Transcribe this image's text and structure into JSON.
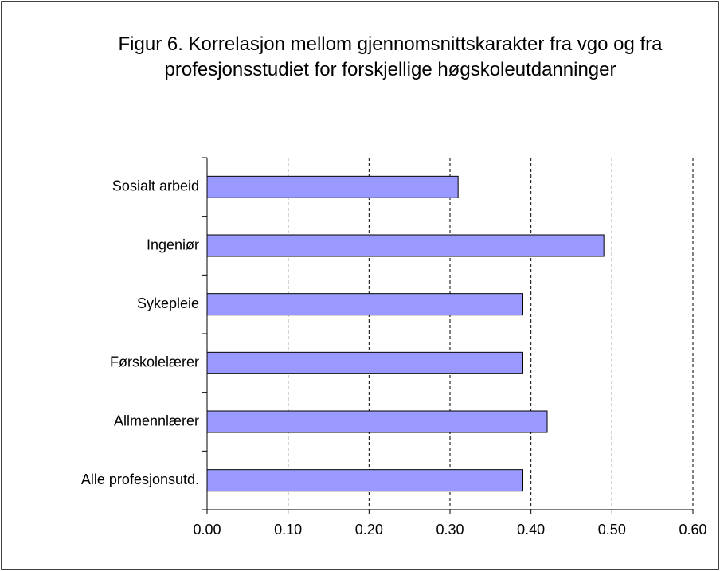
{
  "chart_data": {
    "type": "bar",
    "orientation": "horizontal",
    "title": "Figur 6. Korrelasjon mellom gjennomsnittskarakter fra vgo og fra profesjonsstudiet for forskjellige høgskoleutdanninger",
    "categories": [
      "Sosialt arbeid",
      "Ingeniør",
      "Sykepleie",
      "Førskolelærer",
      "Allmennlærer",
      "Alle profesjonsutd."
    ],
    "values": [
      0.31,
      0.49,
      0.39,
      0.39,
      0.42,
      0.39
    ],
    "color": "#9999ff",
    "xlim": [
      0,
      0.6
    ],
    "xticks": [
      {
        "value": 0,
        "label": "0.00"
      },
      {
        "value": 0.1,
        "label": "0.10"
      },
      {
        "value": 0.2,
        "label": "0.20"
      },
      {
        "value": 0.3,
        "label": "0.30"
      },
      {
        "value": 0.4,
        "label": "0.40"
      },
      {
        "value": 0.5,
        "label": "0.50"
      },
      {
        "value": 0.6,
        "label": "0.60"
      }
    ],
    "grid": true
  }
}
